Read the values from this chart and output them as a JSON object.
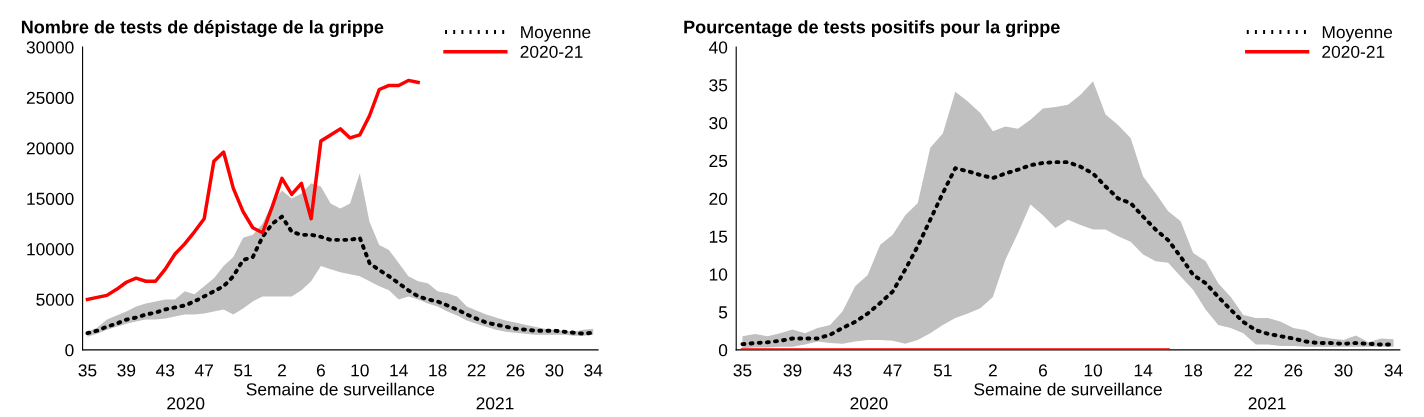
{
  "chart_data": [
    {
      "type": "line",
      "title": "Nombre de tests de dépistage de la grippe",
      "xlabel": "Semaine de surveillance",
      "categories": [
        "35",
        null,
        null,
        null,
        "39",
        null,
        null,
        null,
        "43",
        null,
        null,
        null,
        "47",
        null,
        null,
        null,
        "51",
        null,
        null,
        null,
        "2",
        null,
        null,
        null,
        "6",
        null,
        null,
        null,
        "10",
        null,
        null,
        null,
        "14",
        null,
        null,
        null,
        "18",
        null,
        null,
        null,
        "22",
        null,
        null,
        null,
        "26",
        null,
        null,
        null,
        "30",
        null,
        null,
        null,
        "34"
      ],
      "ylim": [
        0,
        30000
      ],
      "yticks": [
        0,
        5000,
        10000,
        15000,
        20000,
        25000,
        30000
      ],
      "grid": false,
      "legend": "top right",
      "annotations": [
        "2020",
        "2021"
      ],
      "series": [
        {
          "name": "Moyenne",
          "color": "#000000",
          "line_style": "dotted",
          "values": [
            1650,
            1900,
            2300,
            2600,
            3000,
            3200,
            3500,
            3700,
            4000,
            4200,
            4400,
            4800,
            5300,
            5800,
            6300,
            7300,
            8900,
            9200,
            11200,
            12500,
            13200,
            11700,
            11400,
            11400,
            11200,
            10900,
            10900,
            10900,
            11100,
            8600,
            7900,
            7300,
            6600,
            5900,
            5300,
            5000,
            4800,
            4400,
            4000,
            3500,
            3100,
            2700,
            2500,
            2300,
            2100,
            2000,
            1900,
            1900,
            1900,
            1800,
            1700,
            1600,
            1700
          ],
          "lower": [
            1300,
            1600,
            2000,
            2300,
            2600,
            2800,
            3000,
            3000,
            3100,
            3300,
            3500,
            3500,
            3600,
            3800,
            4000,
            3500,
            4100,
            4800,
            5300,
            5300,
            5300,
            5300,
            5900,
            6800,
            8300,
            8000,
            7700,
            7500,
            7300,
            6800,
            6300,
            5900,
            5000,
            5300,
            5000,
            4600,
            4300,
            3800,
            3400,
            2900,
            2600,
            2300,
            2000,
            1800,
            1700,
            1600,
            1500,
            1500,
            1500,
            1500,
            1400,
            1400,
            1500
          ],
          "upper": [
            1800,
            2200,
            3000,
            3400,
            3800,
            4300,
            4600,
            4800,
            5000,
            5000,
            5800,
            5500,
            6300,
            7100,
            8300,
            9200,
            11100,
            11400,
            12500,
            14500,
            15800,
            15000,
            15500,
            16500,
            16200,
            14500,
            14000,
            14500,
            17500,
            12700,
            10400,
            9900,
            8600,
            7300,
            6800,
            6600,
            5800,
            5600,
            5300,
            4300,
            3900,
            3500,
            3200,
            2900,
            2700,
            2500,
            2300,
            2100,
            2000,
            1900,
            1800,
            2000,
            2100
          ]
        },
        {
          "name": "2020-21",
          "color": "#ff0000",
          "line_style": "solid",
          "values": [
            5000,
            5200,
            5400,
            6000,
            6700,
            7100,
            6800,
            6800,
            8000,
            9500,
            10500,
            11700,
            13000,
            18700,
            19600,
            16000,
            13700,
            12100,
            11600,
            14200,
            17000,
            15400,
            16500,
            13000,
            20700,
            21300,
            21900,
            21000,
            21300,
            23200,
            25800,
            26200,
            26200,
            26700,
            26500,
            null,
            null,
            null,
            null,
            null,
            null,
            null,
            null,
            null,
            null,
            null,
            null,
            null,
            null,
            null,
            null,
            null,
            null
          ]
        }
      ]
    },
    {
      "type": "line",
      "title": "Pourcentage de tests positifs pour la grippe",
      "xlabel": "Semaine de surveillance",
      "categories": [
        "35",
        null,
        null,
        null,
        "39",
        null,
        null,
        null,
        "43",
        null,
        null,
        null,
        "47",
        null,
        null,
        null,
        "51",
        null,
        null,
        null,
        "2",
        null,
        null,
        null,
        "6",
        null,
        null,
        null,
        "10",
        null,
        null,
        null,
        "14",
        null,
        null,
        null,
        "18",
        null,
        null,
        null,
        "22",
        null,
        null,
        null,
        "26",
        null,
        null,
        null,
        "30",
        null,
        null,
        null,
        "34"
      ],
      "ylim": [
        0,
        40
      ],
      "yticks": [
        0,
        5,
        10,
        15,
        20,
        25,
        30,
        35,
        40
      ],
      "grid": false,
      "legend": "top right",
      "annotations": [
        "2020",
        "2021"
      ],
      "series": [
        {
          "name": "Moyenne",
          "color": "#000000",
          "line_style": "dotted",
          "values": [
            0.75,
            0.9,
            1.0,
            1.2,
            1.5,
            1.5,
            1.5,
            2.0,
            2.9,
            3.7,
            4.8,
            6.2,
            7.7,
            10.6,
            13.7,
            17.2,
            20.7,
            24.0,
            23.6,
            23.1,
            22.7,
            23.3,
            23.8,
            24.4,
            24.7,
            24.8,
            24.8,
            24.2,
            23.3,
            21.6,
            20.0,
            19.4,
            17.6,
            15.9,
            14.5,
            12.3,
            9.9,
            8.8,
            7.0,
            5.3,
            3.7,
            2.6,
            2.1,
            1.8,
            1.5,
            1.1,
            0.9,
            0.9,
            0.8,
            0.9,
            0.8,
            0.7,
            0.7
          ],
          "lower": [
            0.2,
            0.3,
            0.3,
            0.4,
            0.4,
            0.7,
            1.1,
            0.9,
            0.8,
            1.1,
            1.3,
            1.3,
            1.2,
            0.8,
            1.3,
            2.2,
            3.3,
            4.2,
            4.8,
            5.5,
            7.0,
            11.9,
            15.4,
            19.2,
            17.8,
            16.1,
            17.2,
            16.5,
            15.9,
            15.9,
            15.0,
            14.3,
            12.6,
            11.7,
            11.5,
            9.7,
            7.9,
            5.3,
            3.3,
            2.9,
            2.2,
            0.7,
            0.7,
            0.5,
            0.5,
            0.4,
            0.4,
            0.4,
            0.4,
            0.4,
            0.4,
            0.4,
            0.4
          ],
          "upper": [
            1.8,
            2.1,
            1.8,
            2.2,
            2.7,
            2.2,
            2.9,
            3.3,
            5.1,
            8.4,
            9.9,
            13.9,
            15.2,
            17.8,
            19.4,
            26.7,
            28.6,
            34.1,
            32.8,
            31.3,
            28.9,
            29.5,
            29.2,
            30.4,
            31.9,
            32.1,
            32.4,
            33.7,
            35.5,
            31.1,
            29.7,
            28.0,
            22.9,
            20.7,
            18.3,
            17.0,
            12.8,
            11.7,
            8.8,
            7.0,
            4.6,
            4.2,
            4.2,
            3.7,
            2.9,
            2.6,
            1.8,
            1.5,
            1.3,
            1.9,
            1.0,
            1.5,
            1.4
          ]
        },
        {
          "name": "2020-21",
          "color": "#ff0000",
          "line_style": "solid",
          "values": [
            0,
            0,
            0,
            0,
            0,
            0,
            0,
            0,
            0,
            0,
            0,
            0,
            0,
            0,
            0,
            0,
            0,
            0,
            0,
            0,
            0,
            0,
            0,
            0,
            0,
            0,
            0,
            0,
            0,
            0,
            0,
            0,
            0,
            0,
            0,
            null,
            null,
            null,
            null,
            null,
            null,
            null,
            null,
            null,
            null,
            null,
            null,
            null,
            null,
            null,
            null,
            null,
            null
          ]
        }
      ]
    }
  ]
}
